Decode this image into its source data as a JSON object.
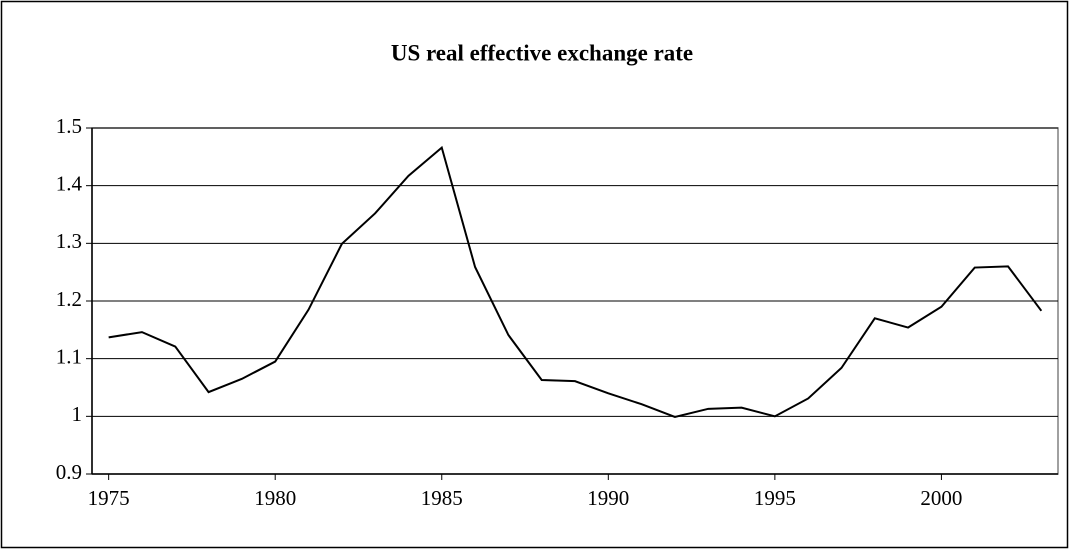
{
  "chart_data": {
    "type": "line",
    "title": "US real effective exchange rate",
    "x": [
      1975,
      1976,
      1977,
      1978,
      1979,
      1980,
      1981,
      1982,
      1983,
      1984,
      1985,
      1986,
      1987,
      1988,
      1989,
      1990,
      1991,
      1992,
      1993,
      1994,
      1995,
      1996,
      1997,
      1998,
      1999,
      2000,
      2001,
      2002,
      2003
    ],
    "values": [
      1.137,
      1.146,
      1.121,
      1.042,
      1.065,
      1.095,
      1.185,
      1.299,
      1.352,
      1.417,
      1.466,
      1.259,
      1.141,
      1.063,
      1.061,
      1.04,
      1.021,
      0.999,
      1.013,
      1.015,
      1.0,
      1.031,
      1.084,
      1.17,
      1.154,
      1.19,
      1.258,
      1.26,
      1.183
    ],
    "color": "#000000",
    "xlim": [
      1974.5,
      2003.5
    ],
    "xticks": [
      1975,
      1980,
      1985,
      1990,
      1995,
      2000
    ],
    "ylim": [
      0.9,
      1.5
    ],
    "yticks": [
      0.9,
      1,
      1.1,
      1.2,
      1.3,
      1.4,
      1.5
    ],
    "grid": true
  }
}
